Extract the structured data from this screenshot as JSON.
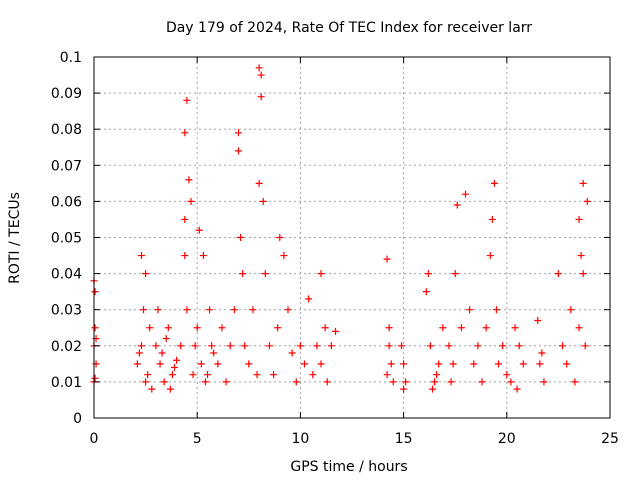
{
  "chart_data": {
    "type": "scatter",
    "title": "Day 179 of 2024, Rate Of TEC Index for receiver larr",
    "xlabel": "GPS time / hours",
    "ylabel": "ROTI / TECUs",
    "xlim": [
      0,
      25
    ],
    "ylim": [
      0,
      0.1
    ],
    "x_ticks": [
      0,
      5,
      10,
      15,
      20,
      25
    ],
    "x_tick_labels": [
      "0",
      "5",
      "10",
      "15",
      "20",
      "25"
    ],
    "y_ticks": [
      0,
      0.01,
      0.02,
      0.03,
      0.04,
      0.05,
      0.06,
      0.07,
      0.08,
      0.09,
      0.1
    ],
    "y_tick_labels": [
      "0",
      "0.01",
      "0.02",
      "0.03",
      "0.04",
      "0.05",
      "0.06",
      "0.07",
      "0.08",
      "0.09",
      "0.1"
    ],
    "grid": true,
    "marker": "plus",
    "color": "#ff0000",
    "series": [
      {
        "x": [
          0.0,
          0.05,
          0.1,
          0.05,
          0.0,
          0.1,
          0.0,
          0.05,
          2.1,
          2.3,
          2.5,
          2.7,
          2.4,
          2.6,
          2.2,
          2.8,
          2.5,
          2.3,
          3.0,
          3.2,
          3.4,
          3.6,
          3.8,
          3.1,
          3.3,
          3.5,
          3.7,
          3.9,
          4.0,
          4.2,
          4.4,
          4.5,
          4.4,
          4.6,
          4.7,
          4.4,
          4.5,
          4.8,
          4.9,
          5.0,
          5.2,
          5.4,
          5.6,
          5.8,
          5.1,
          5.3,
          5.5,
          5.7,
          6.0,
          6.2,
          6.4,
          6.6,
          6.8,
          7.0,
          7.0,
          7.1,
          7.2,
          7.3,
          7.5,
          7.7,
          7.9,
          8.0,
          8.1,
          8.1,
          8.0,
          8.2,
          8.3,
          8.5,
          8.7,
          8.9,
          9.0,
          9.2,
          9.4,
          9.6,
          9.8,
          10.0,
          10.2,
          10.4,
          10.6,
          10.8,
          11.0,
          11.2,
          11.0,
          11.3,
          11.5,
          11.7,
          14.2,
          14.3,
          14.4,
          14.5,
          14.3,
          14.2,
          14.9,
          15.0,
          15.1,
          15.0,
          16.1,
          16.3,
          16.5,
          16.7,
          16.9,
          16.2,
          16.6,
          16.4,
          17.2,
          17.4,
          17.6,
          17.8,
          17.5,
          17.3,
          18.0,
          18.2,
          18.4,
          18.6,
          18.8,
          19.0,
          19.2,
          19.4,
          19.3,
          19.5,
          19.6,
          19.8,
          20.0,
          20.2,
          20.4,
          20.6,
          20.8,
          20.5,
          21.5,
          21.7,
          21.8,
          21.6,
          22.5,
          22.7,
          22.9,
          23.1,
          23.3,
          23.5,
          23.7,
          23.9,
          23.5,
          23.6,
          23.7,
          23.8
        ],
        "y": [
          0.038,
          0.025,
          0.022,
          0.011,
          0.01,
          0.015,
          0.02,
          0.035,
          0.015,
          0.02,
          0.01,
          0.025,
          0.03,
          0.012,
          0.018,
          0.008,
          0.04,
          0.045,
          0.02,
          0.015,
          0.01,
          0.025,
          0.012,
          0.03,
          0.018,
          0.022,
          0.008,
          0.014,
          0.016,
          0.02,
          0.045,
          0.088,
          0.079,
          0.066,
          0.06,
          0.055,
          0.03,
          0.012,
          0.02,
          0.025,
          0.015,
          0.01,
          0.03,
          0.018,
          0.052,
          0.045,
          0.012,
          0.02,
          0.015,
          0.025,
          0.01,
          0.02,
          0.03,
          0.079,
          0.074,
          0.05,
          0.04,
          0.02,
          0.015,
          0.03,
          0.012,
          0.097,
          0.095,
          0.089,
          0.065,
          0.06,
          0.04,
          0.02,
          0.012,
          0.025,
          0.05,
          0.045,
          0.03,
          0.018,
          0.01,
          0.02,
          0.015,
          0.033,
          0.012,
          0.02,
          0.04,
          0.025,
          0.015,
          0.01,
          0.02,
          0.024,
          0.044,
          0.02,
          0.015,
          0.01,
          0.025,
          0.012,
          0.02,
          0.015,
          0.01,
          0.008,
          0.035,
          0.02,
          0.01,
          0.015,
          0.025,
          0.04,
          0.012,
          0.008,
          0.02,
          0.015,
          0.059,
          0.025,
          0.04,
          0.01,
          0.062,
          0.03,
          0.015,
          0.02,
          0.01,
          0.025,
          0.045,
          0.065,
          0.055,
          0.03,
          0.015,
          0.02,
          0.012,
          0.01,
          0.025,
          0.02,
          0.015,
          0.008,
          0.027,
          0.018,
          0.01,
          0.015,
          0.04,
          0.02,
          0.015,
          0.03,
          0.01,
          0.025,
          0.065,
          0.06,
          0.055,
          0.045,
          0.04,
          0.02
        ]
      }
    ]
  }
}
